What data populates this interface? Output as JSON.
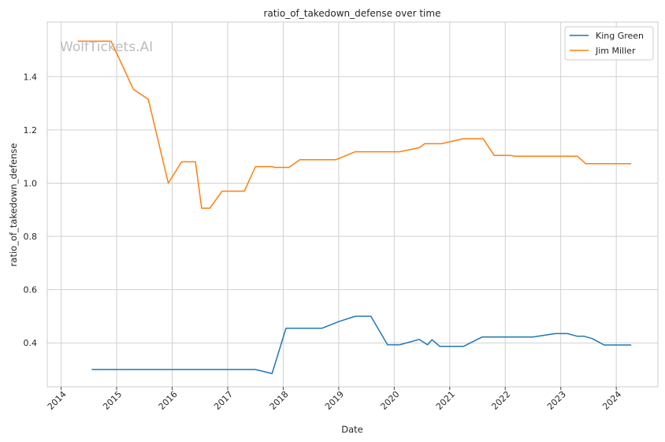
{
  "chart_data": {
    "type": "line",
    "title": "ratio_of_takedown_defense over time",
    "xlabel": "Date",
    "ylabel": "ratio_of_takedown_defense",
    "watermark": "WolfTickets.AI",
    "xlim": [
      2013.75,
      2024.75
    ],
    "ylim": [
      0.235,
      1.605
    ],
    "x_ticks": [
      2014,
      2015,
      2016,
      2017,
      2018,
      2019,
      2020,
      2021,
      2022,
      2023,
      2024
    ],
    "x_tick_labels": [
      "2014",
      "2015",
      "2016",
      "2017",
      "2018",
      "2019",
      "2020",
      "2021",
      "2022",
      "2023",
      "2024"
    ],
    "y_ticks": [
      0.4,
      0.6,
      0.8,
      1.0,
      1.2,
      1.4
    ],
    "y_tick_labels": [
      "0.4",
      "0.6",
      "0.8",
      "1.0",
      "1.2",
      "1.4"
    ],
    "grid": true,
    "legend_position": "top-right",
    "series": [
      {
        "name": "King Green",
        "color": "#1f77b4",
        "points": [
          [
            2014.55,
            0.3
          ],
          [
            2017.5,
            0.3
          ],
          [
            2017.8,
            0.285
          ],
          [
            2018.05,
            0.455
          ],
          [
            2018.7,
            0.455
          ],
          [
            2019.0,
            0.48
          ],
          [
            2019.3,
            0.5
          ],
          [
            2019.58,
            0.5
          ],
          [
            2019.88,
            0.393
          ],
          [
            2020.1,
            0.393
          ],
          [
            2020.45,
            0.413
          ],
          [
            2020.6,
            0.393
          ],
          [
            2020.68,
            0.412
          ],
          [
            2020.82,
            0.387
          ],
          [
            2021.25,
            0.387
          ],
          [
            2021.58,
            0.422
          ],
          [
            2022.5,
            0.422
          ],
          [
            2022.9,
            0.435
          ],
          [
            2023.12,
            0.435
          ],
          [
            2023.3,
            0.425
          ],
          [
            2023.42,
            0.425
          ],
          [
            2023.57,
            0.416
          ],
          [
            2023.78,
            0.392
          ],
          [
            2024.27,
            0.392
          ]
        ]
      },
      {
        "name": "Jim Miller",
        "color": "#ff7f0e",
        "points": [
          [
            2014.3,
            1.533
          ],
          [
            2014.9,
            1.533
          ],
          [
            2015.3,
            1.353
          ],
          [
            2015.57,
            1.315
          ],
          [
            2015.93,
            1.0
          ],
          [
            2016.17,
            1.08
          ],
          [
            2016.42,
            1.08
          ],
          [
            2016.53,
            0.906
          ],
          [
            2016.68,
            0.906
          ],
          [
            2016.9,
            0.97
          ],
          [
            2017.3,
            0.97
          ],
          [
            2017.5,
            1.062
          ],
          [
            2017.8,
            1.062
          ],
          [
            2017.85,
            1.059
          ],
          [
            2018.1,
            1.059
          ],
          [
            2018.3,
            1.088
          ],
          [
            2018.95,
            1.088
          ],
          [
            2019.3,
            1.118
          ],
          [
            2020.1,
            1.118
          ],
          [
            2020.45,
            1.133
          ],
          [
            2020.55,
            1.148
          ],
          [
            2020.85,
            1.148
          ],
          [
            2021.25,
            1.167
          ],
          [
            2021.6,
            1.167
          ],
          [
            2021.8,
            1.104
          ],
          [
            2022.1,
            1.104
          ],
          [
            2022.17,
            1.101
          ],
          [
            2023.3,
            1.101
          ],
          [
            2023.45,
            1.073
          ],
          [
            2024.27,
            1.073
          ]
        ]
      }
    ]
  }
}
